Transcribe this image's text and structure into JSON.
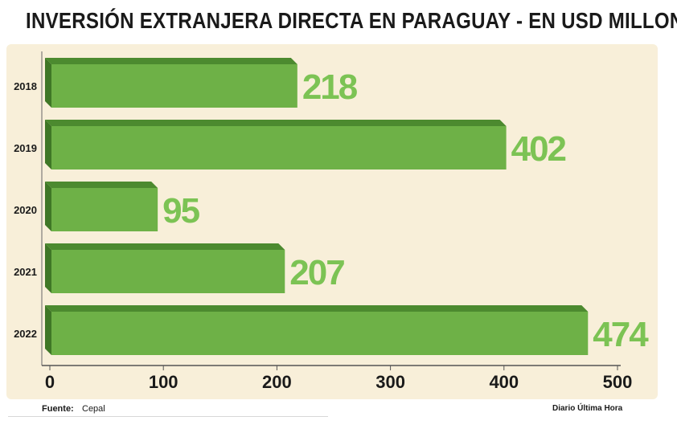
{
  "chart_data": {
    "type": "bar",
    "orientation": "horizontal",
    "title": "INVERSIÓN EXTRANJERA DIRECTA EN PARAGUAY - EN USD MILLONES",
    "categories": [
      "2018",
      "2019",
      "2020",
      "2021",
      "2022"
    ],
    "values": [
      218,
      402,
      95,
      207,
      474
    ],
    "value_labels": [
      "218",
      "402",
      "95",
      "207",
      "474"
    ],
    "xlim": [
      0,
      500
    ],
    "xticks": [
      0,
      100,
      200,
      300,
      400,
      500
    ],
    "xtick_labels": [
      "0",
      "100",
      "200",
      "300",
      "400",
      "500"
    ],
    "grid": false,
    "legend": "none",
    "colors": {
      "bar_front": "#6eb147",
      "bar_top": "#4c8a2f",
      "bar_side": "#3f7726",
      "value_label": "#7cc354",
      "panel": "#f8efd9"
    }
  },
  "footer": {
    "source_label": "Fuente:",
    "source_value": "Cepal",
    "credit": "Diario Última Hora"
  }
}
